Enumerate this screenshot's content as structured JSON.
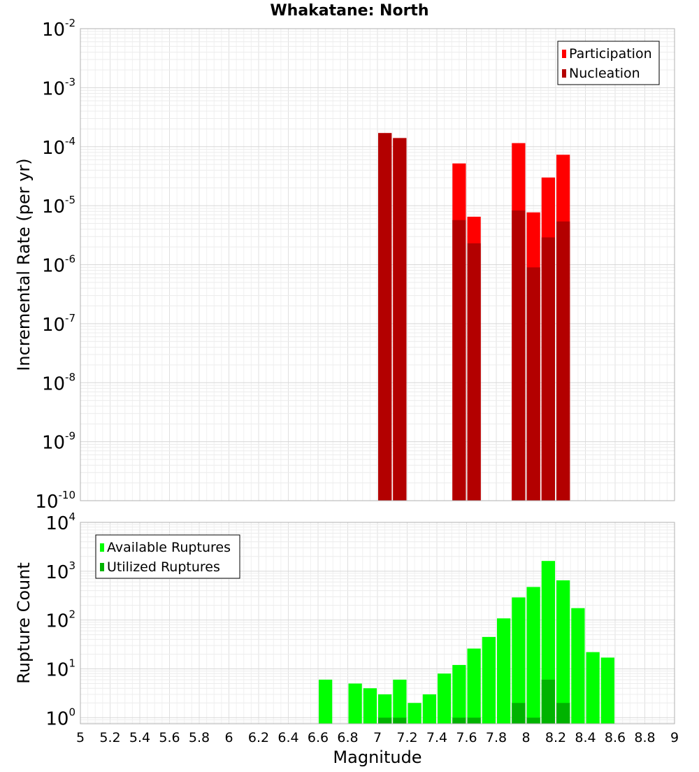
{
  "chart_data": [
    {
      "type": "bar",
      "title": "Whakatane: North",
      "xlabel": "",
      "ylabel": "Incremental Rate (per yr)",
      "yscale": "log",
      "ylim": [
        1e-10,
        0.01
      ],
      "xlim": [
        5,
        9
      ],
      "grid": true,
      "legend_position": "top-right",
      "x_tick_labels": [],
      "y_tick_labels": [
        {
          "base": "10",
          "exp": "-10"
        },
        {
          "base": "10",
          "exp": "-9"
        },
        {
          "base": "10",
          "exp": "-8"
        },
        {
          "base": "10",
          "exp": "-7"
        },
        {
          "base": "10",
          "exp": "-6"
        },
        {
          "base": "10",
          "exp": "-5"
        },
        {
          "base": "10",
          "exp": "-4"
        },
        {
          "base": "10",
          "exp": "-3"
        },
        {
          "base": "10",
          "exp": "-2"
        }
      ],
      "bar_width": 0.1,
      "series": [
        {
          "name": "Participation",
          "color": "#ff0000",
          "x": [
            7.05,
            7.15,
            7.55,
            7.65,
            7.95,
            8.05,
            8.15,
            8.25
          ],
          "values": [
            0.00017,
            0.00014,
            5.2e-05,
            6.5e-06,
            0.000115,
            7.7e-06,
            3e-05,
            7.3e-05
          ]
        },
        {
          "name": "Nucleation",
          "color": "#b30000",
          "x": [
            7.05,
            7.15,
            7.55,
            7.65,
            7.95,
            8.05,
            8.15,
            8.25
          ],
          "values": [
            0.00017,
            0.00014,
            5.7e-06,
            2.3e-06,
            8.3e-06,
            9e-07,
            2.9e-06,
            5.4e-06
          ]
        }
      ]
    },
    {
      "type": "bar",
      "title": "",
      "xlabel": "Magnitude",
      "ylabel": "Rupture Count",
      "yscale": "log",
      "ylim": [
        0.75,
        10000
      ],
      "xlim": [
        5,
        9
      ],
      "grid": true,
      "legend_position": "top-left",
      "x_tick_labels": [
        "5",
        "5.2",
        "5.4",
        "5.6",
        "5.8",
        "6",
        "6.2",
        "6.4",
        "6.6",
        "6.8",
        "7",
        "7.2",
        "7.4",
        "7.6",
        "7.8",
        "8",
        "8.2",
        "8.4",
        "8.6",
        "8.8",
        "9"
      ],
      "y_tick_labels": [
        {
          "base": "10",
          "exp": "0"
        },
        {
          "base": "10",
          "exp": "1"
        },
        {
          "base": "10",
          "exp": "2"
        },
        {
          "base": "10",
          "exp": "3"
        },
        {
          "base": "10",
          "exp": "4"
        }
      ],
      "bar_width": 0.1,
      "series": [
        {
          "name": "Available Ruptures",
          "color": "#00ff00",
          "x": [
            6.65,
            6.85,
            6.95,
            7.05,
            7.15,
            7.25,
            7.35,
            7.45,
            7.55,
            7.65,
            7.75,
            7.85,
            7.95,
            8.05,
            8.15,
            8.25,
            8.35,
            8.45,
            8.55
          ],
          "values": [
            6,
            5,
            4,
            3,
            6,
            2,
            3,
            8,
            12,
            26,
            45,
            108,
            290,
            475,
            1620,
            650,
            175,
            22,
            17
          ]
        },
        {
          "name": "Utilized Ruptures",
          "color": "#00b300",
          "x": [
            7.05,
            7.15,
            7.55,
            7.65,
            7.95,
            8.05,
            8.15,
            8.25
          ],
          "values": [
            1,
            1,
            1,
            1,
            2,
            1,
            6,
            2
          ]
        }
      ]
    }
  ]
}
